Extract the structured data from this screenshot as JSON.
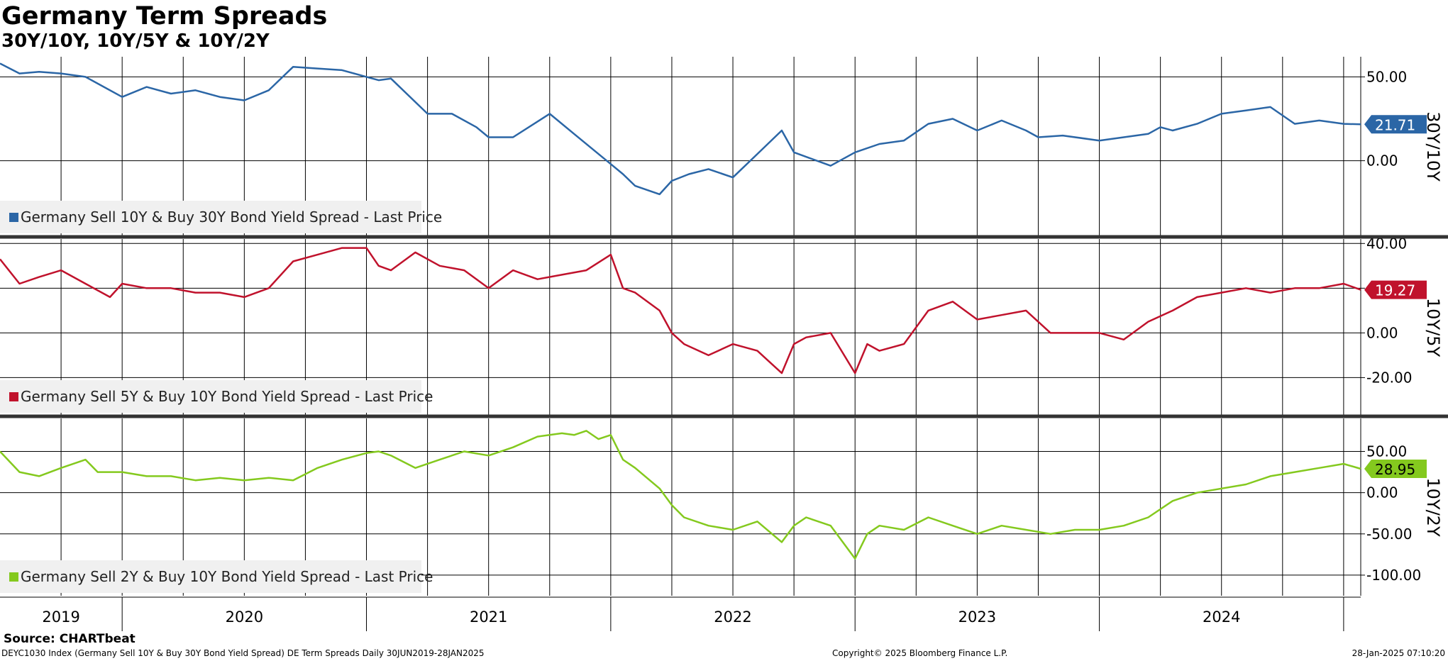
{
  "title": "Germany Term Spreads",
  "subtitle": "30Y/10Y, 10Y/5Y & 10Y/2Y",
  "source": "Source: CHARTbeat",
  "footer": {
    "left": "DEYC1030 Index (Germany Sell 10Y & Buy 30Y Bond Yield Spread) DE Term Spreads  Daily 30JUN2019-28JAN2025",
    "center": "Copyright© 2025 Bloomberg Finance L.P.",
    "right": "28-Jan-2025 07:10:20"
  },
  "colors": {
    "blue": "#2b66a6",
    "red": "#c0122c",
    "green": "#84c91e"
  },
  "chart_data": [
    {
      "type": "line",
      "panel": "30Y/10Y",
      "axis_label": "30Y/10Y",
      "ylim": [
        -45,
        62
      ],
      "yticks": [
        50.0,
        0.0
      ],
      "ytick_labels": [
        "50.00",
        "0.00"
      ],
      "legend": "Germany Sell 10Y & Buy 30Y Bond Yield Spread - Last Price",
      "last_value": 21.71,
      "last_label": "21.71",
      "color": "blue",
      "x": [
        2019.5,
        2019.58,
        2019.66,
        2019.75,
        2019.85,
        2020.0,
        2020.1,
        2020.2,
        2020.3,
        2020.4,
        2020.5,
        2020.6,
        2020.7,
        2020.8,
        2020.9,
        2021.0,
        2021.05,
        2021.1,
        2021.25,
        2021.35,
        2021.45,
        2021.5,
        2021.6,
        2021.75,
        2021.85,
        2022.0,
        2022.05,
        2022.1,
        2022.2,
        2022.25,
        2022.32,
        2022.4,
        2022.5,
        2022.6,
        2022.7,
        2022.75,
        2022.9,
        2023.0,
        2023.1,
        2023.2,
        2023.3,
        2023.4,
        2023.5,
        2023.6,
        2023.7,
        2023.75,
        2023.85,
        2024.0,
        2024.1,
        2024.2,
        2024.25,
        2024.3,
        2024.4,
        2024.5,
        2024.6,
        2024.7,
        2024.8,
        2024.9,
        2025.0,
        2025.07
      ],
      "values": [
        58,
        52,
        53,
        52,
        50,
        38,
        44,
        40,
        42,
        38,
        36,
        42,
        56,
        55,
        54,
        50,
        48,
        49,
        28,
        28,
        20,
        14,
        14,
        28,
        16,
        -2,
        -8,
        -15,
        -20,
        -12,
        -8,
        -5,
        -10,
        4,
        18,
        5,
        -3,
        5,
        10,
        12,
        22,
        25,
        18,
        24,
        18,
        14,
        15,
        12,
        14,
        16,
        20,
        18,
        22,
        28,
        30,
        32,
        22,
        24,
        22,
        21.71
      ]
    },
    {
      "type": "line",
      "panel": "10Y/5Y",
      "axis_label": "10Y/5Y",
      "ylim": [
        -37,
        42
      ],
      "yticks": [
        40.0,
        20.0,
        0.0,
        -20.0
      ],
      "ytick_labels": [
        "40.00",
        "",
        "0.00",
        "-20.00"
      ],
      "legend": "Germany Sell 5Y & Buy 10Y Bond Yield Spread - Last Price",
      "last_value": 19.27,
      "last_label": "19.27",
      "color": "red",
      "x": [
        2019.5,
        2019.58,
        2019.66,
        2019.75,
        2019.85,
        2019.95,
        2020.0,
        2020.1,
        2020.2,
        2020.3,
        2020.4,
        2020.5,
        2020.6,
        2020.7,
        2020.8,
        2020.9,
        2021.0,
        2021.05,
        2021.1,
        2021.2,
        2021.3,
        2021.4,
        2021.5,
        2021.6,
        2021.7,
        2021.8,
        2021.9,
        2022.0,
        2022.05,
        2022.1,
        2022.2,
        2022.25,
        2022.3,
        2022.4,
        2022.5,
        2022.6,
        2022.7,
        2022.75,
        2022.8,
        2022.9,
        2023.0,
        2023.05,
        2023.1,
        2023.2,
        2023.3,
        2023.4,
        2023.5,
        2023.6,
        2023.7,
        2023.8,
        2023.9,
        2024.0,
        2024.1,
        2024.2,
        2024.3,
        2024.4,
        2024.5,
        2024.6,
        2024.7,
        2024.8,
        2024.9,
        2025.0,
        2025.07
      ],
      "values": [
        33,
        22,
        25,
        28,
        22,
        16,
        22,
        20,
        20,
        18,
        18,
        16,
        20,
        32,
        35,
        38,
        38,
        30,
        28,
        36,
        30,
        28,
        20,
        28,
        24,
        26,
        28,
        35,
        20,
        18,
        10,
        0,
        -5,
        -10,
        -5,
        -8,
        -18,
        -5,
        -2,
        0,
        -18,
        -5,
        -8,
        -5,
        10,
        14,
        6,
        8,
        10,
        0,
        0,
        0,
        -3,
        5,
        10,
        16,
        18,
        20,
        18,
        20,
        20,
        22,
        19.27
      ]
    },
    {
      "type": "line",
      "panel": "10Y/2Y",
      "axis_label": "10Y/2Y",
      "ylim": [
        -125,
        90
      ],
      "yticks": [
        50.0,
        0.0,
        -50.0,
        -100.0
      ],
      "ytick_labels": [
        "50.00",
        "0.00",
        "-50.00",
        "-100.00"
      ],
      "legend": "Germany Sell 2Y & Buy 10Y Bond Yield Spread - Last Price",
      "last_value": 28.95,
      "last_label": "28.95",
      "color": "green",
      "x": [
        2019.5,
        2019.58,
        2019.66,
        2019.75,
        2019.85,
        2019.9,
        2020.0,
        2020.1,
        2020.2,
        2020.3,
        2020.4,
        2020.5,
        2020.6,
        2020.7,
        2020.8,
        2020.9,
        2021.0,
        2021.05,
        2021.1,
        2021.2,
        2021.3,
        2021.4,
        2021.5,
        2021.6,
        2021.7,
        2021.8,
        2021.85,
        2021.9,
        2021.95,
        2022.0,
        2022.05,
        2022.1,
        2022.2,
        2022.25,
        2022.3,
        2022.4,
        2022.5,
        2022.6,
        2022.7,
        2022.75,
        2022.8,
        2022.9,
        2023.0,
        2023.05,
        2023.1,
        2023.2,
        2023.3,
        2023.4,
        2023.5,
        2023.6,
        2023.7,
        2023.8,
        2023.9,
        2024.0,
        2024.1,
        2024.2,
        2024.3,
        2024.4,
        2024.5,
        2024.6,
        2024.7,
        2024.8,
        2024.9,
        2025.0,
        2025.07
      ],
      "values": [
        50,
        25,
        20,
        30,
        40,
        25,
        25,
        20,
        20,
        15,
        18,
        15,
        18,
        15,
        30,
        40,
        48,
        50,
        45,
        30,
        40,
        50,
        45,
        55,
        68,
        72,
        70,
        75,
        65,
        70,
        40,
        30,
        5,
        -15,
        -30,
        -40,
        -45,
        -35,
        -60,
        -40,
        -30,
        -40,
        -80,
        -50,
        -40,
        -45,
        -30,
        -40,
        -50,
        -40,
        -45,
        -50,
        -45,
        -45,
        -40,
        -30,
        -10,
        0,
        5,
        10,
        20,
        25,
        30,
        35,
        28.95
      ]
    }
  ],
  "xaxis": {
    "range": [
      2019.5,
      2025.07
    ],
    "year_labels": [
      "2019",
      "2020",
      "2021",
      "2022",
      "2023",
      "2024"
    ],
    "year_label_positions": [
      2019.75,
      2020.5,
      2021.5,
      2022.5,
      2023.5,
      2024.5
    ]
  }
}
